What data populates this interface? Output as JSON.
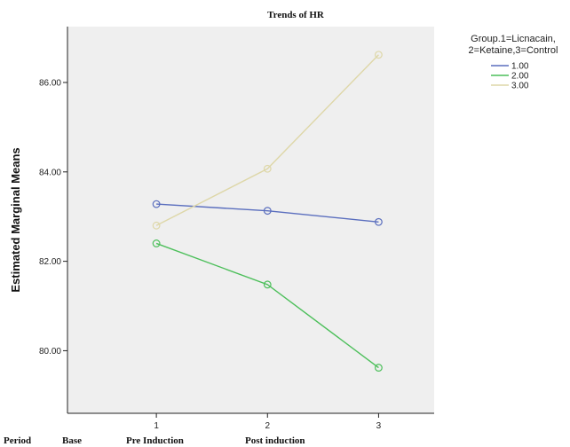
{
  "chart_data": {
    "type": "line",
    "title": "Trends of HR",
    "xlabel": "",
    "ylabel": "Estimated Marginal Means",
    "x": [
      "1",
      "2",
      "3"
    ],
    "xlim": [
      0.2,
      3.5
    ],
    "ylim": [
      78.6,
      87.25
    ],
    "yticks": [
      "80.00",
      "82.00",
      "84.00",
      "86.00"
    ],
    "ytick_values": [
      80,
      82,
      84,
      86
    ],
    "grid": false,
    "legend": {
      "title_lines": [
        "Group.1=Licnacain,",
        "2=Ketaine,3=Control"
      ],
      "placement": "top-right outside"
    },
    "series": [
      {
        "name": "1.00",
        "color": "#5a6ebe",
        "values": [
          83.28,
          83.13,
          82.88
        ]
      },
      {
        "name": "2.00",
        "color": "#4cbf5a",
        "values": [
          82.4,
          81.48,
          79.62
        ]
      },
      {
        "name": "3.00",
        "color": "#ded7a8",
        "values": [
          82.8,
          84.07,
          86.62
        ]
      }
    ],
    "period_row": [
      "Period",
      "Base",
      "Pre Induction",
      "Post induction"
    ],
    "plot_background": "#efefef"
  }
}
